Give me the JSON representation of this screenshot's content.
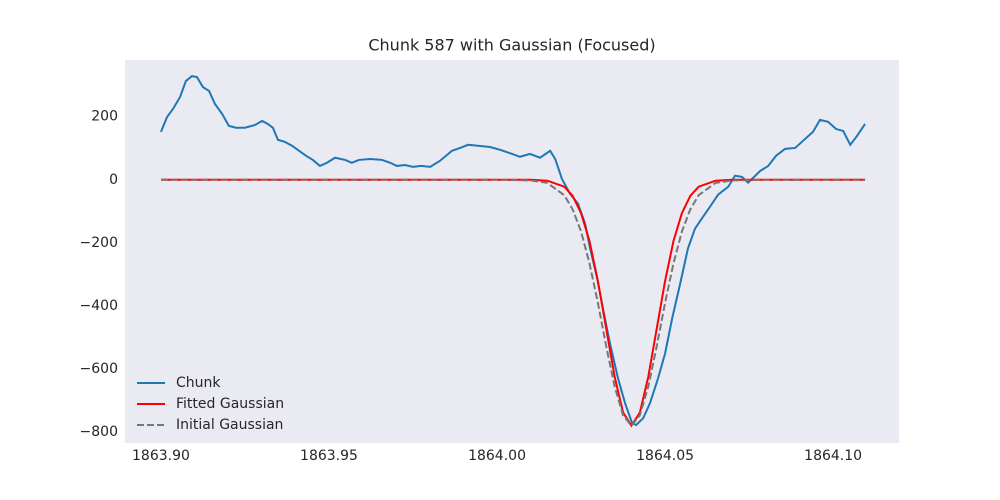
{
  "chart_data": {
    "type": "line",
    "title": "Chunk 587 with Gaussian (Focused)",
    "xlim": [
      1863.8893,
      1864.1196
    ],
    "ylim": [
      -835,
      380
    ],
    "xticks": [
      {
        "value": 1863.9,
        "label": "1863.90"
      },
      {
        "value": 1863.95,
        "label": "1863.95"
      },
      {
        "value": 1864.0,
        "label": "1864.00"
      },
      {
        "value": 1864.05,
        "label": "1864.05"
      },
      {
        "value": 1864.1,
        "label": "1864.10"
      }
    ],
    "yticks": [
      {
        "value": -800,
        "label": "−800"
      },
      {
        "value": -600,
        "label": "−600"
      },
      {
        "value": -400,
        "label": "−400"
      },
      {
        "value": -200,
        "label": "−200"
      },
      0,
      200
    ],
    "grid": false,
    "legend": "lower left",
    "series": [
      {
        "name": "Chunk",
        "color": "#1f77b4",
        "linestyle": "solid",
        "x": [
          1863.9,
          1863.9018,
          1863.9036,
          1863.9057,
          1863.9074,
          1863.9092,
          1863.9107,
          1863.9125,
          1863.9143,
          1863.9161,
          1863.9182,
          1863.9202,
          1863.9223,
          1863.925,
          1863.928,
          1863.9301,
          1863.9318,
          1863.9333,
          1863.9348,
          1863.9369,
          1863.939,
          1863.9411,
          1863.9432,
          1863.9452,
          1863.9473,
          1863.9494,
          1863.9518,
          1863.9548,
          1863.9568,
          1863.9589,
          1863.9622,
          1863.9658,
          1863.9682,
          1863.9702,
          1863.9726,
          1863.975,
          1863.9774,
          1863.9801,
          1863.983,
          1863.9866,
          1863.989,
          1863.9914,
          1863.9943,
          1863.9979,
          1864.0009,
          1864.0045,
          1864.0068,
          1864.0098,
          1864.0128,
          1864.0158,
          1864.0173,
          1864.0193,
          1864.0217,
          1864.0241,
          1864.0262,
          1864.0277,
          1864.0298,
          1864.0315,
          1864.0336,
          1864.036,
          1864.0381,
          1864.0402,
          1864.0414,
          1864.0435,
          1864.0455,
          1864.0479,
          1864.05,
          1864.0521,
          1864.0545,
          1864.0568,
          1864.0589,
          1864.0613,
          1864.0634,
          1864.0658,
          1864.0688,
          1864.0708,
          1864.0729,
          1864.0747,
          1864.0759,
          1864.0783,
          1864.0807,
          1864.083,
          1864.0857,
          1864.0887,
          1864.0917,
          1864.094,
          1864.0961,
          1864.0985,
          1864.1009,
          1864.103,
          1864.1051,
          1864.1071,
          1864.1095
        ],
        "values": [
          152,
          199,
          225,
          263,
          313,
          329,
          326,
          294,
          282,
          240,
          209,
          171,
          165,
          165,
          174,
          187,
          177,
          165,
          127,
          120,
          108,
          92,
          76,
          63,
          44,
          54,
          70,
          63,
          54,
          63,
          66,
          63,
          54,
          44,
          47,
          41,
          44,
          41,
          60,
          92,
          101,
          111,
          108,
          104,
          95,
          82,
          73,
          82,
          70,
          92,
          66,
          3,
          -44,
          -76,
          -139,
          -218,
          -313,
          -408,
          -519,
          -630,
          -709,
          -772,
          -778,
          -756,
          -709,
          -630,
          -551,
          -440,
          -329,
          -218,
          -155,
          -117,
          -85,
          -47,
          -22,
          13,
          9,
          -9,
          3,
          28,
          44,
          76,
          98,
          101,
          130,
          152,
          190,
          184,
          161,
          155,
          111,
          139,
          177
        ]
      },
      {
        "name": "Fitted Gaussian",
        "color": "#ff0000",
        "linestyle": "solid",
        "x": [
          1863.9,
          1863.95,
          1864.0,
          1864.01,
          1864.015,
          1864.02,
          1864.0225,
          1864.025,
          1864.0275,
          1864.03,
          1864.0325,
          1864.035,
          1864.0375,
          1864.04,
          1864.0425,
          1864.045,
          1864.0475,
          1864.05,
          1864.0525,
          1864.055,
          1864.0575,
          1864.06,
          1864.065,
          1864.07,
          1864.08,
          1864.1,
          1864.1095
        ],
        "values": [
          0,
          0,
          0,
          0,
          -3,
          -22,
          -51,
          -106,
          -194,
          -321,
          -473,
          -625,
          -738,
          -780,
          -738,
          -625,
          -473,
          -321,
          -194,
          -106,
          -51,
          -22,
          -3,
          0,
          0,
          0,
          0
        ]
      },
      {
        "name": "Initial Gaussian",
        "color": "#777777",
        "linestyle": "dashed",
        "x": [
          1863.9,
          1863.95,
          1864.0,
          1864.01,
          1864.015,
          1864.02,
          1864.0225,
          1864.025,
          1864.0275,
          1864.03,
          1864.0325,
          1864.035,
          1864.0375,
          1864.04,
          1864.0425,
          1864.045,
          1864.0475,
          1864.05,
          1864.0525,
          1864.055,
          1864.0575,
          1864.06,
          1864.065,
          1864.07,
          1864.08,
          1864.1,
          1864.1095
        ],
        "values": [
          0,
          0,
          0,
          -2,
          -10,
          -49,
          -94,
          -164,
          -265,
          -390,
          -529,
          -656,
          -747,
          -780,
          -747,
          -656,
          -529,
          -390,
          -265,
          -164,
          -94,
          -49,
          -10,
          -2,
          0,
          0,
          0
        ]
      }
    ]
  }
}
